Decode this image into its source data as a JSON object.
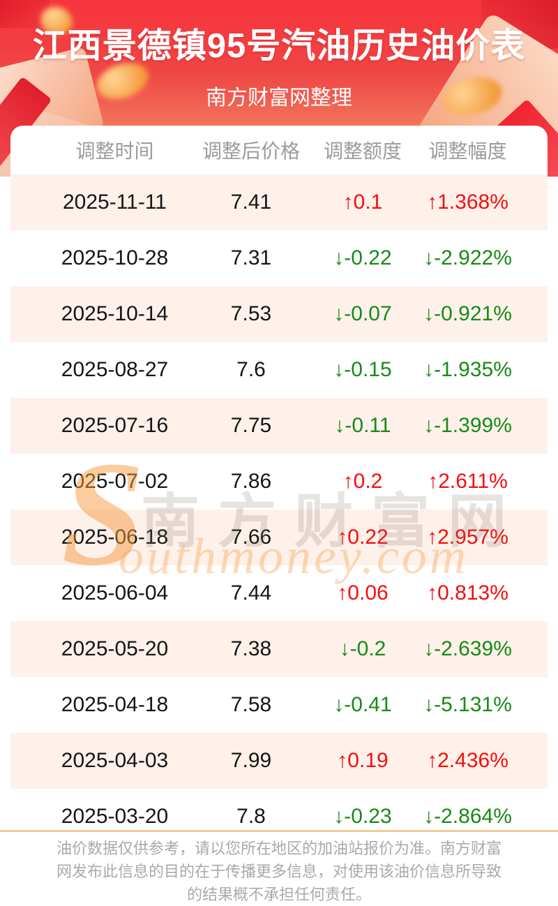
{
  "header": {
    "title": "江西景德镇95号汽油历史油价表",
    "subtitle": "南方财富网整理"
  },
  "table": {
    "columns": [
      "调整时间",
      "调整后价格",
      "调整额度",
      "调整幅度"
    ],
    "rows": [
      {
        "date": "2025-11-11",
        "price": "7.41",
        "change": "↑0.1",
        "percent": "↑1.368%",
        "direction": "up"
      },
      {
        "date": "2025-10-28",
        "price": "7.31",
        "change": "↓-0.22",
        "percent": "↓-2.922%",
        "direction": "down"
      },
      {
        "date": "2025-10-14",
        "price": "7.53",
        "change": "↓-0.07",
        "percent": "↓-0.921%",
        "direction": "down"
      },
      {
        "date": "2025-08-27",
        "price": "7.6",
        "change": "↓-0.15",
        "percent": "↓-1.935%",
        "direction": "down"
      },
      {
        "date": "2025-07-16",
        "price": "7.75",
        "change": "↓-0.11",
        "percent": "↓-1.399%",
        "direction": "down"
      },
      {
        "date": "2025-07-02",
        "price": "7.86",
        "change": "↑0.2",
        "percent": "↑2.611%",
        "direction": "up"
      },
      {
        "date": "2025-06-18",
        "price": "7.66",
        "change": "↑0.22",
        "percent": "↑2.957%",
        "direction": "up"
      },
      {
        "date": "2025-06-04",
        "price": "7.44",
        "change": "↑0.06",
        "percent": "↑0.813%",
        "direction": "up"
      },
      {
        "date": "2025-05-20",
        "price": "7.38",
        "change": "↓-0.2",
        "percent": "↓-2.639%",
        "direction": "down"
      },
      {
        "date": "2025-04-18",
        "price": "7.58",
        "change": "↓-0.41",
        "percent": "↓-5.131%",
        "direction": "down"
      },
      {
        "date": "2025-04-03",
        "price": "7.99",
        "change": "↑0.19",
        "percent": "↑2.436%",
        "direction": "up"
      },
      {
        "date": "2025-03-20",
        "price": "7.8",
        "change": "↓-0.23",
        "percent": "↓-2.864%",
        "direction": "down"
      }
    ]
  },
  "watermark": {
    "s": "S",
    "cn": "南方财富网",
    "en": "outhmoney.com"
  },
  "footer": {
    "disclaimer": "油价数据仅供参考，请以您所在地区的加油站报价为准。南方财富网发布此信息的目的在于传播更多信息，对使用该油价信息所导致的结果概不承担任何责任。"
  },
  "colors": {
    "up": "#f70d0d",
    "down": "#178a17",
    "stripe": "#fdf1ea",
    "divider": "#f6c893",
    "banner": "#f6343c"
  }
}
